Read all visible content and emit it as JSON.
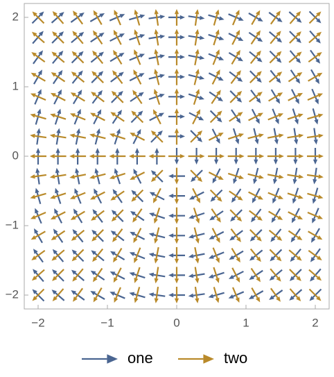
{
  "chart_data": {
    "type": "vector",
    "x": [
      -2,
      -1.714,
      -1.429,
      -1.143,
      -0.857,
      -0.571,
      -0.286,
      0,
      0.286,
      0.571,
      0.857,
      1.143,
      1.429,
      1.714,
      2
    ],
    "y": [
      2,
      1.714,
      1.429,
      1.143,
      0.857,
      0.571,
      0.286,
      0,
      -0.286,
      -0.571,
      -0.857,
      -1.143,
      -1.429,
      -1.714,
      -2
    ],
    "series": [
      {
        "name": "one",
        "color": "#4a6591",
        "values": [
          [
            45,
            41,
            36,
            30,
            23,
            16,
            8,
            0,
            -8,
            -16,
            -23,
            -30,
            -36,
            -41,
            -45
          ],
          [
            49,
            45,
            40,
            34,
            27,
            18,
            9,
            0,
            -9,
            -18,
            -27,
            -34,
            -40,
            -45,
            -49
          ],
          [
            54,
            50,
            45,
            39,
            31,
            22,
            11,
            0,
            -11,
            -22,
            -31,
            -39,
            -45,
            -50,
            -54
          ],
          [
            60,
            56,
            51,
            45,
            37,
            27,
            14,
            0,
            -14,
            -27,
            -37,
            -45,
            -51,
            -56,
            -60
          ],
          [
            67,
            63,
            59,
            53,
            45,
            34,
            18,
            0,
            -18,
            -34,
            -45,
            -53,
            -59,
            -63,
            -67
          ],
          [
            74,
            72,
            68,
            63,
            56,
            45,
            27,
            0,
            -27,
            -45,
            -56,
            -63,
            -68,
            -72,
            -74
          ],
          [
            82,
            81,
            79,
            76,
            72,
            63,
            45,
            0,
            -45,
            -63,
            -72,
            -76,
            -79,
            -81,
            -82
          ],
          [
            90,
            90,
            90,
            90,
            90,
            90,
            90,
            -90,
            -90,
            -90,
            -90,
            -90,
            -90,
            -90,
            -90
          ],
          [
            98,
            99,
            101,
            104,
            108,
            117,
            135,
            -180,
            -135,
            -117,
            -108,
            -104,
            -101,
            -99,
            -98
          ],
          [
            106,
            108,
            112,
            117,
            124,
            135,
            153,
            -180,
            -153,
            -135,
            -124,
            -117,
            -112,
            -108,
            -106
          ],
          [
            113,
            117,
            121,
            127,
            135,
            146,
            162,
            -180,
            -162,
            -146,
            -135,
            -127,
            -121,
            -117,
            -113
          ],
          [
            120,
            124,
            129,
            135,
            143,
            153,
            166,
            -180,
            -166,
            -153,
            -143,
            -135,
            -129,
            -124,
            -120
          ],
          [
            126,
            130,
            135,
            141,
            149,
            158,
            169,
            -180,
            -169,
            -158,
            -149,
            -141,
            -135,
            -130,
            -126
          ],
          [
            131,
            135,
            140,
            146,
            153,
            162,
            171,
            -180,
            -171,
            -162,
            -153,
            -146,
            -140,
            -135,
            -131
          ],
          [
            135,
            139,
            144,
            150,
            157,
            164,
            172,
            -180,
            -172,
            -164,
            -157,
            -150,
            -144,
            -139,
            -135
          ]
        ]
      },
      {
        "name": "two",
        "color": "#b98a2a",
        "values": [
          [
            135,
            131,
            126,
            120,
            113,
            106,
            98,
            90,
            82,
            74,
            67,
            60,
            54,
            49,
            45
          ],
          [
            139,
            135,
            130,
            124,
            117,
            108,
            99,
            90,
            81,
            72,
            63,
            56,
            50,
            45,
            41
          ],
          [
            144,
            140,
            135,
            129,
            121,
            112,
            101,
            90,
            79,
            68,
            59,
            51,
            45,
            40,
            36
          ],
          [
            150,
            146,
            141,
            135,
            127,
            117,
            104,
            90,
            76,
            63,
            53,
            45,
            39,
            34,
            30
          ],
          [
            157,
            153,
            149,
            143,
            135,
            124,
            108,
            90,
            72,
            56,
            45,
            37,
            31,
            27,
            23
          ],
          [
            164,
            162,
            158,
            153,
            146,
            135,
            117,
            90,
            63,
            45,
            34,
            27,
            22,
            18,
            16
          ],
          [
            172,
            171,
            169,
            166,
            162,
            153,
            135,
            90,
            45,
            27,
            18,
            14,
            11,
            9,
            8
          ],
          [
            180,
            180,
            180,
            180,
            180,
            180,
            180,
            0,
            0,
            0,
            0,
            0,
            0,
            0,
            0
          ],
          [
            -172,
            -171,
            -169,
            -166,
            -162,
            -153,
            -135,
            -90,
            -45,
            -27,
            -18,
            -14,
            -11,
            -9,
            -8
          ],
          [
            -164,
            -162,
            -158,
            -153,
            -146,
            -135,
            -117,
            -90,
            -63,
            -45,
            -34,
            -27,
            -22,
            -18,
            -16
          ],
          [
            -157,
            -153,
            -149,
            -143,
            -135,
            -124,
            -108,
            -90,
            -72,
            -56,
            -45,
            -37,
            -31,
            -27,
            -23
          ],
          [
            -150,
            -146,
            -141,
            -135,
            -127,
            -117,
            -104,
            -90,
            -76,
            -63,
            -53,
            -45,
            -39,
            -34,
            -30
          ],
          [
            -144,
            -140,
            -135,
            -129,
            -121,
            -112,
            -101,
            -90,
            -79,
            -68,
            -59,
            -51,
            -45,
            -40,
            -36
          ],
          [
            -139,
            -135,
            -130,
            -124,
            -117,
            -108,
            -99,
            -90,
            -81,
            -72,
            -63,
            -56,
            -50,
            -45,
            -41
          ],
          [
            -135,
            -131,
            -126,
            -120,
            -113,
            -106,
            -98,
            -90,
            -82,
            -74,
            -67,
            -60,
            -54,
            -49,
            -45
          ]
        ]
      }
    ],
    "xlim": [
      -2.2,
      2.2
    ],
    "ylim": [
      -2.2,
      2.2
    ],
    "xticks": [
      {
        "value": -2,
        "label": "−2"
      },
      {
        "value": -1,
        "label": "−1"
      },
      0,
      1,
      2
    ],
    "yticks": [
      {
        "value": -2,
        "label": "−2"
      },
      {
        "value": -1,
        "label": "−1"
      },
      0,
      1,
      2
    ],
    "legend": "bottom"
  }
}
